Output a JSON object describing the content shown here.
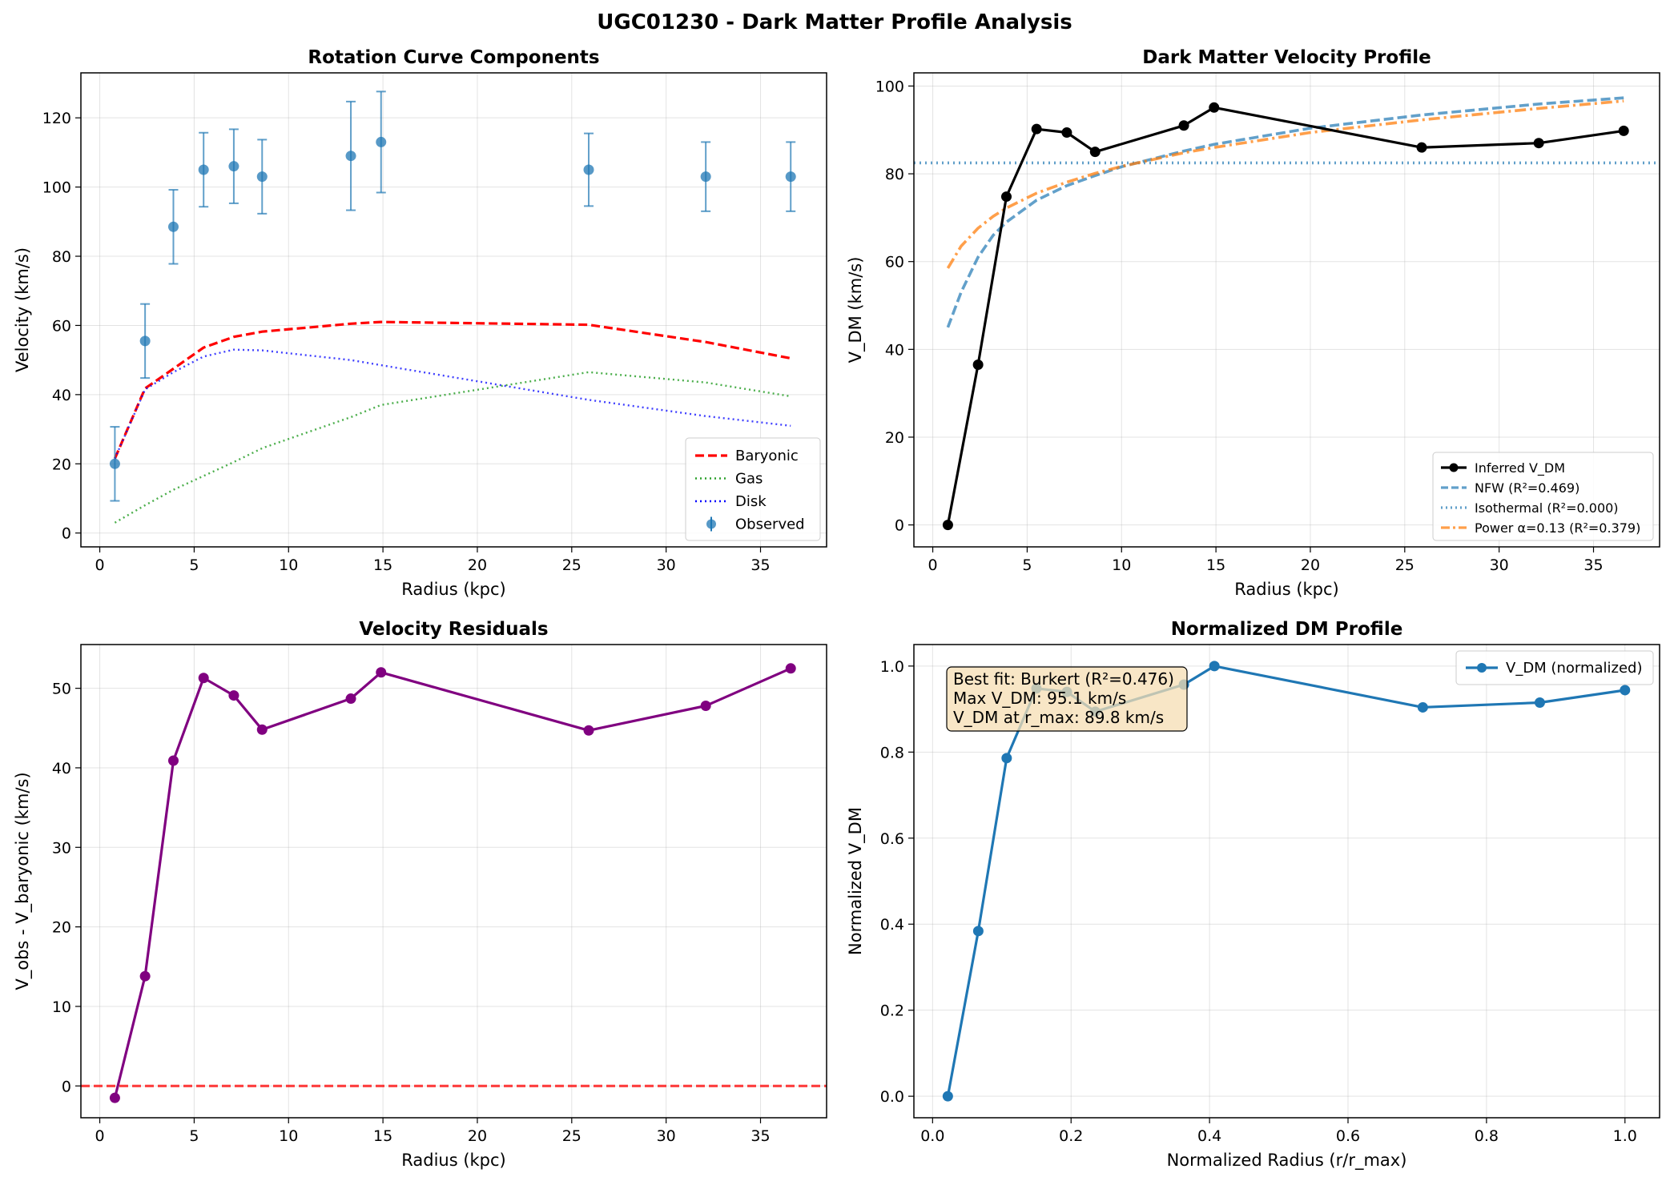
{
  "figure_title": "UGC01230 - Dark Matter Profile Analysis",
  "colors": {
    "observed": "#1f77b4",
    "baryonic": "#ff0000",
    "gas": "#2ca02c",
    "disk": "#0000ff",
    "inferred": "#000000",
    "nfw": "#1f77b4",
    "isothermal": "#1f77b4",
    "power": "#ff7f0e",
    "residual": "#800080",
    "zero_line": "#ff0000",
    "normalized": "#1f77b4",
    "annot_bg": "#f5deb3"
  },
  "chart_data": [
    {
      "id": "rotation",
      "type": "line",
      "title": "Rotation Curve Components",
      "xlabel": "Radius (kpc)",
      "ylabel": "Velocity (km/s)",
      "xlim": [
        -1,
        38.5
      ],
      "ylim": [
        -4,
        133
      ],
      "xticks": [
        0,
        5,
        10,
        15,
        20,
        25,
        30,
        35
      ],
      "yticks": [
        0,
        20,
        40,
        60,
        80,
        100,
        120
      ],
      "grid": true,
      "legend_position": "lower-right",
      "legend": [
        "Baryonic",
        "Gas",
        "Disk",
        "Observed"
      ],
      "series": [
        {
          "name": "Observed",
          "kind": "errorbar",
          "x": [
            0.8,
            2.4,
            3.9,
            5.5,
            7.1,
            8.6,
            13.3,
            14.9,
            25.9,
            32.1,
            36.6
          ],
          "y": [
            20,
            55.5,
            88.5,
            105,
            106,
            103,
            109,
            113,
            105,
            103,
            103
          ],
          "err": [
            10.7,
            10.7,
            10.7,
            10.7,
            10.7,
            10.7,
            15.7,
            14.6,
            10.5,
            10,
            10
          ]
        },
        {
          "name": "Baryonic",
          "kind": "dashed",
          "x": [
            0.8,
            2.4,
            3.9,
            5.5,
            7.1,
            8.6,
            13.3,
            14.9,
            25.9,
            32.1,
            36.6
          ],
          "y": [
            21.5,
            41.8,
            47.5,
            53.6,
            56.7,
            58.2,
            60.5,
            61,
            60.2,
            55.2,
            50.5
          ]
        },
        {
          "name": "Gas",
          "kind": "dotted",
          "x": [
            0.8,
            2.4,
            3.9,
            5.5,
            7.1,
            8.6,
            13.3,
            14.9,
            25.9,
            32.1,
            36.6
          ],
          "y": [
            3,
            8,
            12.5,
            16.5,
            20.5,
            24.5,
            33.5,
            37,
            46.5,
            43.5,
            39.5
          ]
        },
        {
          "name": "Disk",
          "kind": "dotted",
          "x": [
            0.8,
            2.4,
            3.9,
            5.5,
            7.1,
            8.6,
            13.3,
            14.9,
            25.9,
            32.1,
            36.6
          ],
          "y": [
            21.5,
            41.5,
            46.5,
            51,
            53,
            52.8,
            50,
            48.5,
            38.5,
            33.8,
            31
          ]
        }
      ]
    },
    {
      "id": "dmprofile",
      "type": "line",
      "title": "Dark Matter Velocity Profile",
      "xlabel": "Radius (kpc)",
      "ylabel": "V_DM (km/s)",
      "xlim": [
        -1,
        38.5
      ],
      "ylim": [
        -5,
        103
      ],
      "xticks": [
        0,
        5,
        10,
        15,
        20,
        25,
        30,
        35
      ],
      "yticks": [
        0,
        20,
        40,
        60,
        80,
        100
      ],
      "grid": true,
      "legend_position": "lower-right",
      "legend": [
        "Inferred V_DM",
        "NFW (R²=0.469)",
        "Isothermal (R²=0.000)",
        "Power α=0.13 (R²=0.379)"
      ],
      "series": [
        {
          "name": "Inferred V_DM",
          "kind": "line-marker",
          "x": [
            0.8,
            2.4,
            3.9,
            5.5,
            7.1,
            8.6,
            13.3,
            14.9,
            25.9,
            32.1,
            36.6
          ],
          "y": [
            0,
            36.5,
            74.8,
            90.2,
            89.4,
            85,
            91,
            95.1,
            86,
            87,
            89.8
          ]
        },
        {
          "name": "NFW (R²=0.469)",
          "kind": "dashed",
          "x": [
            0.8,
            1.5,
            2.4,
            3.2,
            3.9,
            5.5,
            7.1,
            8.6,
            10,
            13.3,
            14.9,
            20,
            25.9,
            32.1,
            36.6
          ],
          "y": [
            45,
            53,
            61,
            66,
            69,
            74,
            77.3,
            79.6,
            81.6,
            85.2,
            86.7,
            90.4,
            93.4,
            95.9,
            97.3
          ]
        },
        {
          "name": "Isothermal (R²=0.000)",
          "kind": "dotted-horizontal",
          "x": [
            -1,
            38.5
          ],
          "y": [
            82.5,
            82.5
          ]
        },
        {
          "name": "Power α=0.13 (R²=0.379)",
          "kind": "dashdot",
          "x": [
            0.8,
            1.5,
            2.4,
            3.2,
            3.9,
            5.5,
            7.1,
            8.6,
            10,
            13.3,
            14.9,
            20,
            25.9,
            32.1,
            36.6
          ],
          "y": [
            58.5,
            63.5,
            67.6,
            70.3,
            72.2,
            75.6,
            78.1,
            80.1,
            81.7,
            84.8,
            86,
            89.4,
            92.3,
            94.9,
            96.6
          ]
        }
      ]
    },
    {
      "id": "residuals",
      "type": "line",
      "title": "Velocity Residuals",
      "xlabel": "Radius (kpc)",
      "ylabel": "V_obs - V_baryonic (km/s)",
      "xlim": [
        -1,
        38.5
      ],
      "ylim": [
        -4,
        55.5
      ],
      "xticks": [
        0,
        5,
        10,
        15,
        20,
        25,
        30,
        35
      ],
      "yticks": [
        0,
        10,
        20,
        30,
        40,
        50
      ],
      "grid": true,
      "series": [
        {
          "name": "",
          "kind": "line-marker",
          "x": [
            0.8,
            2.4,
            3.9,
            5.5,
            7.1,
            8.6,
            13.3,
            14.9,
            25.9,
            32.1,
            36.6
          ],
          "y": [
            -1.5,
            13.8,
            40.9,
            51.3,
            49.1,
            44.8,
            48.7,
            52,
            44.7,
            47.8,
            52.5
          ]
        },
        {
          "name": "",
          "kind": "zero-line",
          "x": [
            -1,
            38.5
          ],
          "y": [
            0,
            0
          ]
        }
      ]
    },
    {
      "id": "normalized",
      "type": "line",
      "title": "Normalized DM Profile",
      "xlabel": "Normalized Radius (r/r_max)",
      "ylabel": "Normalized V_DM",
      "xlim": [
        -0.027,
        1.05
      ],
      "ylim": [
        -0.05,
        1.05
      ],
      "xticks": [
        0.0,
        0.2,
        0.4,
        0.6,
        0.8,
        1.0
      ],
      "yticks": [
        0.0,
        0.2,
        0.4,
        0.6,
        0.8,
        1.0
      ],
      "xtick_labels": [
        "0.0",
        "0.2",
        "0.4",
        "0.6",
        "0.8",
        "1.0"
      ],
      "ytick_labels": [
        "0.0",
        "0.2",
        "0.4",
        "0.6",
        "0.8",
        "1.0"
      ],
      "grid": true,
      "legend_position": "upper-right",
      "legend": [
        "V_DM (normalized)"
      ],
      "annotation": [
        "Best fit: Burkert (R²=0.476)",
        "Max V_DM: 95.1 km/s",
        "V_DM at r_max: 89.8 km/s"
      ],
      "series": [
        {
          "name": "V_DM (normalized)",
          "kind": "line-marker",
          "x": [
            0.022,
            0.066,
            0.107,
            0.15,
            0.194,
            0.235,
            0.363,
            0.407,
            0.708,
            0.877,
            1.0
          ],
          "y": [
            0,
            0.384,
            0.786,
            0.948,
            0.94,
            0.894,
            0.957,
            1.0,
            0.904,
            0.915,
            0.944
          ]
        }
      ]
    }
  ]
}
